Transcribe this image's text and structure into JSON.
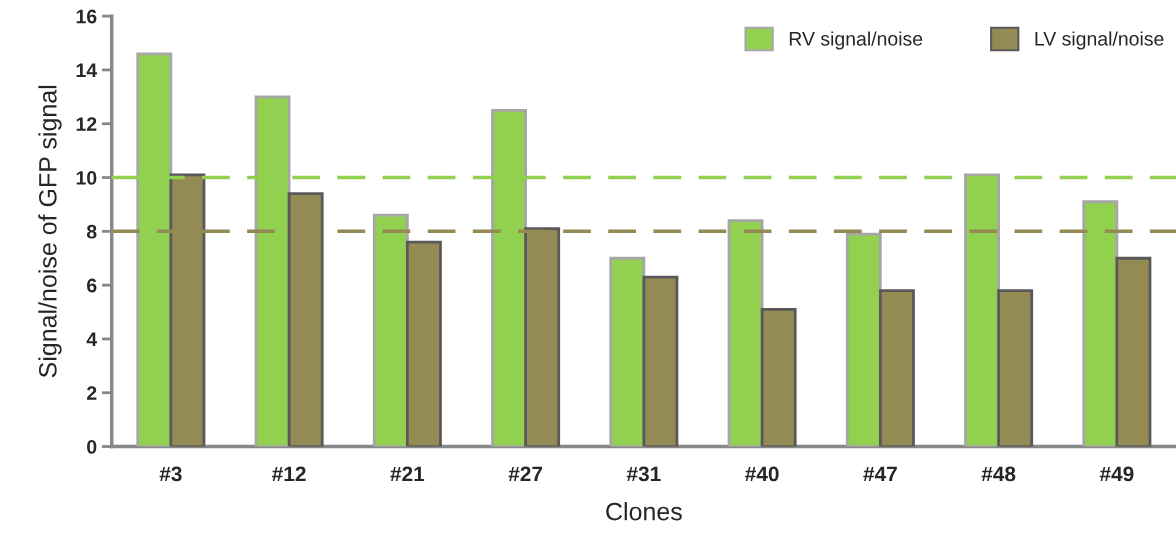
{
  "chart_data": {
    "type": "bar",
    "xlabel": "Clones",
    "ylabel": "Signal/noise of GFP signal",
    "categories": [
      "#3",
      "#12",
      "#21",
      "#27",
      "#31",
      "#40",
      "#47",
      "#48",
      "#49"
    ],
    "series": [
      {
        "name": "RV signal/noise",
        "color": "#92d050",
        "values": [
          14.6,
          13.0,
          8.6,
          12.5,
          7.0,
          8.4,
          7.9,
          10.1,
          9.1
        ]
      },
      {
        "name": "LV signal/noise",
        "color": "#948a54",
        "values": [
          10.1,
          9.4,
          7.6,
          8.1,
          6.3,
          5.1,
          5.8,
          5.8,
          7.0
        ]
      }
    ],
    "ylim": [
      0,
      16
    ],
    "yticks": [
      0,
      2,
      4,
      6,
      8,
      10,
      12,
      14,
      16
    ],
    "ref_lines": [
      {
        "axis": "y",
        "value": 10,
        "color": "#92d050",
        "line_style": "dashed"
      },
      {
        "axis": "y",
        "value": 8,
        "color": "#948a54",
        "line_style": "dashed"
      }
    ],
    "grid": false,
    "legend": "top right"
  }
}
